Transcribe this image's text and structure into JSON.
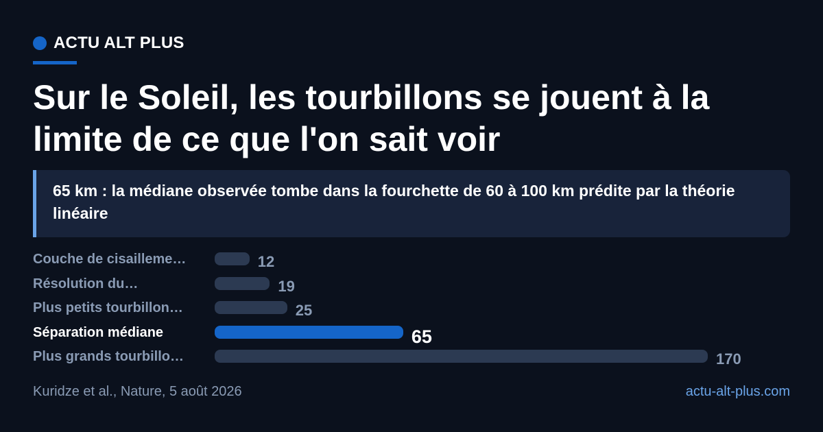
{
  "brand": {
    "name": "ACTU ALT PLUS",
    "accent": "#1565c8"
  },
  "headline": "Sur le Soleil, les tourbillons se jouent à la limite de ce que l'on sait voir",
  "callout": "65 km : la médiane observée tombe dans la fourchette de 60 à 100 km prédite par la théorie linéaire",
  "chart_data": {
    "type": "bar",
    "orientation": "horizontal",
    "categories": [
      "Couche de cisailleme…",
      "Résolution du…",
      "Plus petits tourbillon…",
      "Séparation médiane",
      "Plus grands tourbillo…"
    ],
    "values": [
      12,
      19,
      25,
      65,
      170
    ],
    "highlight_index": 3,
    "xlim": [
      0,
      170
    ],
    "colors": {
      "default": "#2c3a52",
      "highlight": "#1565c8"
    },
    "grid": false
  },
  "footer": {
    "source": "Kuridze et al., Nature, 5 août 2026",
    "site": "actu-alt-plus.com"
  }
}
